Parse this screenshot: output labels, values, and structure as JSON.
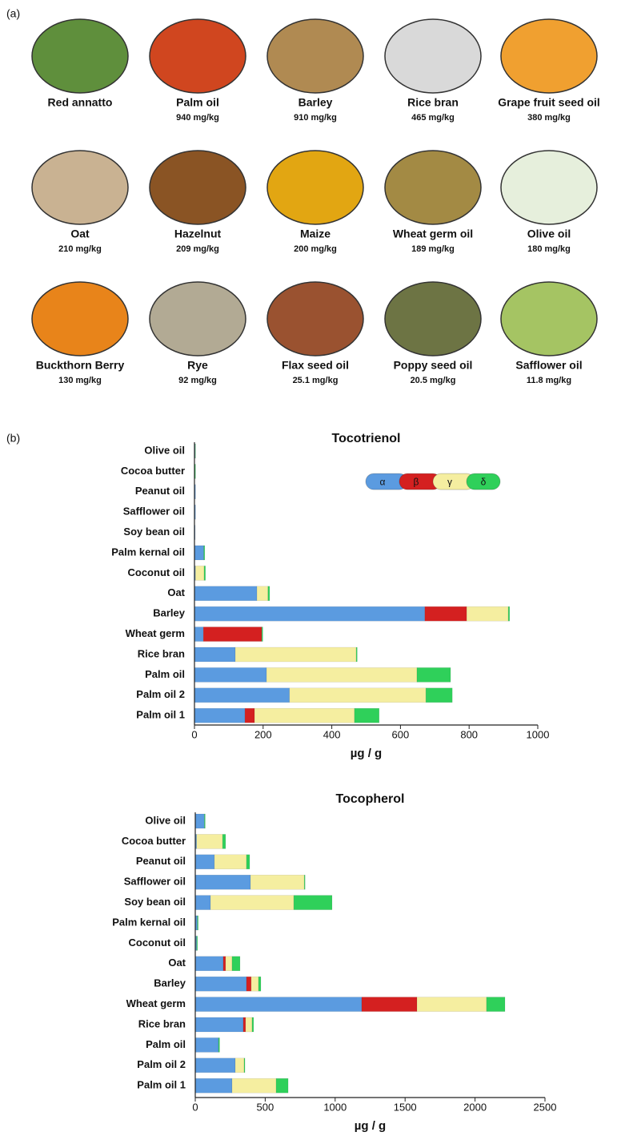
{
  "panel_a": {
    "label": "(a)",
    "items": [
      {
        "name": "Red annatto"
      },
      {
        "name": "Palm oil",
        "amount": "940 mg/kg"
      },
      {
        "name": "Barley",
        "amount": "910 mg/kg"
      },
      {
        "name": "Rice bran",
        "amount": "465 mg/kg"
      },
      {
        "name": "Grape fruit seed oil",
        "amount": "380 mg/kg"
      },
      {
        "name": "Oat",
        "amount": "210 mg/kg"
      },
      {
        "name": "Hazelnut",
        "amount": "209 mg/kg"
      },
      {
        "name": "Maize",
        "amount": "200 mg/kg"
      },
      {
        "name": "Wheat germ oil",
        "amount": "189 mg/kg"
      },
      {
        "name": "Olive oil",
        "amount": "180 mg/kg"
      },
      {
        "name": "Buckthorn Berry",
        "amount": "130 mg/kg"
      },
      {
        "name": "Rye",
        "amount": "92 mg/kg"
      },
      {
        "name": "Flax seed oil",
        "amount": "25.1 mg/kg"
      },
      {
        "name": "Poppy seed oil",
        "amount": "20.5 mg/kg"
      },
      {
        "name": "Safflower oil",
        "amount": "11.8 mg/kg"
      }
    ]
  },
  "panel_b_label": "(b)",
  "chart_data": [
    {
      "type": "bar",
      "orientation": "horizontal",
      "stacked": true,
      "title": "Tocotrienol",
      "xlabel": "µg / g",
      "categories": [
        "Olive oil",
        "Cocoa butter",
        "Peanut oil",
        "Safflower oil",
        "Soy bean oil",
        "Palm kernal oil",
        "Coconut oil",
        "Oat",
        "Barley",
        "Wheat germ",
        "Rice bran",
        "Palm oil",
        "Palm oil 2",
        "Palm oil 1"
      ],
      "series": [
        {
          "name": "α",
          "color": "#5b9be0",
          "values": [
            2,
            0,
            3,
            3,
            2,
            27,
            3,
            182,
            671,
            26,
            119,
            210,
            277,
            147
          ]
        },
        {
          "name": "β",
          "color": "#d42020",
          "values": [
            0,
            0,
            0,
            0,
            0,
            0,
            0,
            0,
            122,
            170,
            0,
            0,
            0,
            28
          ]
        },
        {
          "name": "γ",
          "color": "#f5eea0",
          "values": [
            0,
            0,
            0,
            0,
            0,
            0,
            25,
            32,
            121,
            0,
            352,
            438,
            397,
            291
          ]
        },
        {
          "name": "δ",
          "color": "#2fd05a",
          "values": [
            1,
            3,
            0,
            0,
            0,
            3,
            4,
            5,
            4,
            3,
            3,
            98,
            77,
            72
          ]
        }
      ],
      "xlim": [
        0,
        1000
      ],
      "xticks": [
        0,
        200,
        400,
        600,
        800,
        1000
      ],
      "legend": "upper right"
    },
    {
      "type": "bar",
      "orientation": "horizontal",
      "stacked": true,
      "title": "Tocopherol",
      "xlabel": "µg / g",
      "categories": [
        "Olive oil",
        "Cocoa butter",
        "Peanut oil",
        "Safflower oil",
        "Soy bean oil",
        "Palm kernal oil",
        "Coconut oil",
        "Oat",
        "Barley",
        "Wheat germ",
        "Rice bran",
        "Palm oil",
        "Palm oil 2",
        "Palm oil 1"
      ],
      "series": [
        {
          "color": "#5b9be0",
          "values": [
            65,
            10,
            137,
            395,
            109,
            15,
            10,
            200,
            366,
            1190,
            343,
            166,
            286,
            263
          ]
        },
        {
          "color": "#d42020",
          "values": [
            0,
            0,
            0,
            0,
            0,
            0,
            0,
            17,
            34,
            395,
            17,
            0,
            0,
            0
          ]
        },
        {
          "color": "#f5eea0",
          "values": [
            0,
            185,
            229,
            384,
            595,
            0,
            0,
            46,
            52,
            497,
            46,
            0,
            63,
            315
          ]
        },
        {
          "color": "#2fd05a",
          "values": [
            6,
            22,
            23,
            6,
            274,
            6,
            6,
            57,
            17,
            132,
            11,
            8,
            6,
            86
          ]
        }
      ],
      "xlim": [
        0,
        2500
      ],
      "xticks": [
        0,
        500,
        1000,
        1500,
        2000,
        2500
      ]
    }
  ]
}
